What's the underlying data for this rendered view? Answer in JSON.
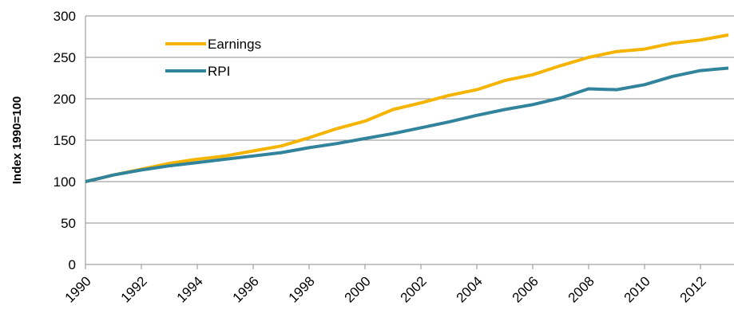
{
  "chart_data": {
    "type": "line",
    "y_label": "Index 1990=100",
    "x": [
      1990,
      1991,
      1992,
      1993,
      1994,
      1995,
      1996,
      1997,
      1998,
      1999,
      2000,
      2001,
      2002,
      2003,
      2004,
      2005,
      2006,
      2007,
      2008,
      2009,
      2010,
      2011,
      2012,
      2013
    ],
    "series": [
      {
        "name": "Earnings",
        "color": "#f5b400",
        "values": [
          100,
          108,
          115,
          122,
          127,
          131,
          137,
          143,
          153,
          164,
          173,
          187,
          195,
          204,
          211,
          222,
          229,
          240,
          250,
          257,
          260,
          267,
          271,
          277
        ]
      },
      {
        "name": "RPI",
        "color": "#31849b",
        "values": [
          100,
          108,
          114,
          119,
          123,
          127,
          131,
          135,
          141,
          146,
          152,
          158,
          165,
          172,
          180,
          187,
          193,
          201,
          212,
          211,
          217,
          227,
          234,
          237
        ]
      }
    ],
    "xlim": [
      1990,
      2013.2
    ],
    "xticks": [
      1990,
      1992,
      1994,
      1996,
      1998,
      2000,
      2002,
      2004,
      2006,
      2008,
      2010,
      2012
    ],
    "ylim": [
      0,
      300
    ],
    "yticks": [
      0,
      50,
      100,
      150,
      200,
      250,
      300
    ],
    "grid": true
  }
}
